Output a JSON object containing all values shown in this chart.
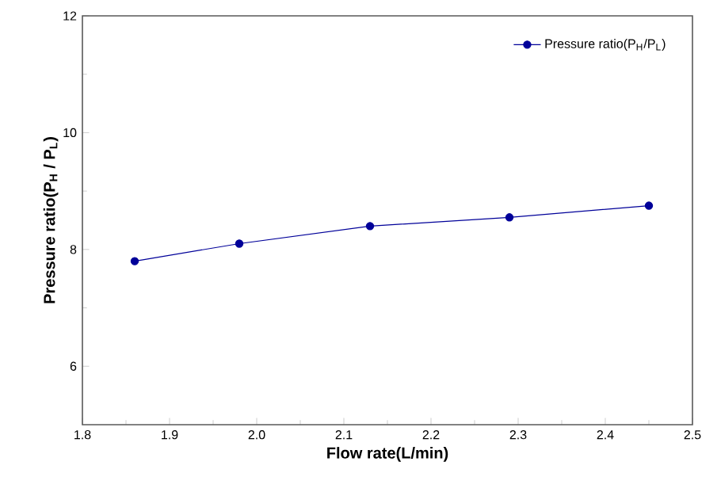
{
  "chart_data": {
    "type": "line",
    "xlabel": "Flow rate(L/min)",
    "ylabel": "Pressure ratio(P$_{H}$ / P$_{L}$)",
    "x": [
      1.86,
      1.98,
      2.13,
      2.29,
      2.45
    ],
    "series": [
      {
        "name": "Pressure ratio(P$_{H}$/P$_{L}$)",
        "color": "#000099",
        "values": [
          7.8,
          8.1,
          8.4,
          8.55,
          8.75
        ]
      }
    ],
    "xlim": [
      1.8,
      2.5
    ],
    "xticks": [
      {
        "value": 1.8,
        "label": "1.8"
      },
      {
        "value": 1.9,
        "label": "1.9"
      },
      {
        "value": 2.0,
        "label": "2.0"
      },
      {
        "value": 2.1,
        "label": "2.1"
      },
      {
        "value": 2.2,
        "label": "2.2"
      },
      {
        "value": 2.3,
        "label": "2.3"
      },
      {
        "value": 2.4,
        "label": "2.4"
      },
      {
        "value": 2.5,
        "label": "2.5"
      }
    ],
    "ylim": [
      5,
      12
    ],
    "yticks": [
      6,
      8,
      10,
      12
    ],
    "legend": "top right",
    "marker": "circle",
    "line_style": "solid",
    "grid": false
  }
}
